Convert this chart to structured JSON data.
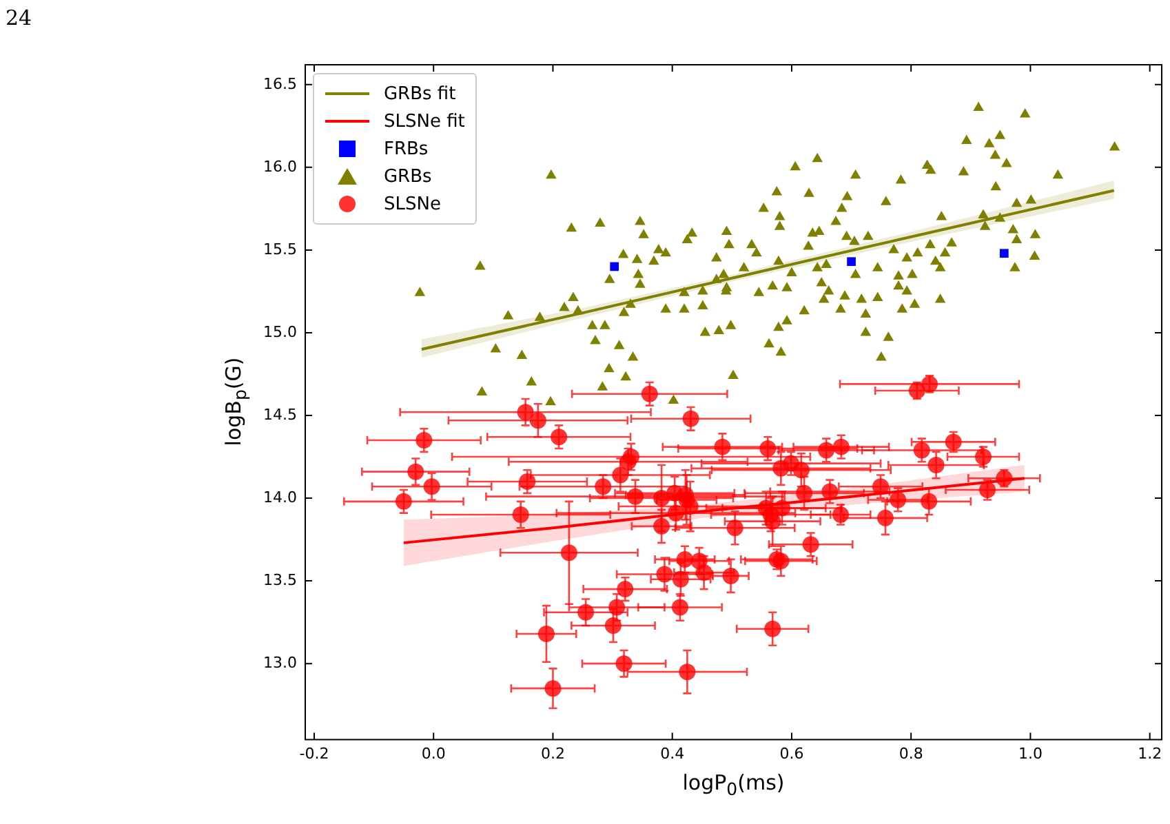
{
  "chart_data": {
    "type": "scatter",
    "xlabel": "logP$_{0}$(ms)",
    "ylabel": "logB$_{p}$(G)",
    "annotations": [
      "24"
    ],
    "xlim": [
      -0.215,
      1.22
    ],
    "ylim": [
      12.54,
      16.62
    ],
    "xticks": [
      -0.2,
      {
        "value": 0,
        "label": "0.0"
      },
      0.2,
      0.4,
      0.6,
      0.8,
      {
        "value": 1,
        "label": "1.0"
      },
      1.2
    ],
    "yticks": [
      {
        "value": 13,
        "label": "13.0"
      },
      13.5,
      {
        "value": 14,
        "label": "14.0"
      },
      14.5,
      {
        "value": 15,
        "label": "15.0"
      },
      15.5,
      {
        "value": 16,
        "label": "16.0"
      },
      16.5
    ],
    "legend": "top left",
    "series": [
      {
        "name": "GRBs fit",
        "type": "line",
        "marker": "none",
        "color": "#808000",
        "x": [
          -0.02,
          0.25,
          0.5,
          0.8,
          1.14
        ],
        "values": [
          14.9,
          15.12,
          15.33,
          15.58,
          15.86
        ],
        "lower": [
          14.85,
          15.09,
          15.31,
          15.55,
          15.81
        ],
        "upper": [
          14.96,
          15.15,
          15.35,
          15.61,
          15.92
        ]
      },
      {
        "name": "SLSNe fit",
        "type": "line",
        "marker": "none",
        "color": "#ff0000",
        "x": [
          -0.05,
          0.2,
          0.45,
          0.7,
          0.99
        ],
        "values": [
          13.73,
          13.82,
          13.92,
          14.01,
          14.12
        ],
        "lower": [
          13.59,
          13.74,
          13.88,
          13.96,
          14.04
        ],
        "upper": [
          13.87,
          13.9,
          13.96,
          14.06,
          14.2
        ]
      },
      {
        "name": "FRBs",
        "type": "scatter",
        "marker": "square",
        "color": "#0000ff",
        "x": [
          0.303,
          0.7,
          0.956
        ],
        "values": [
          15.4,
          15.43,
          15.48
        ]
      },
      {
        "name": "GRBs",
        "type": "scatter",
        "marker": "triangle",
        "color": "#808000",
        "x": [
          0.197,
          -0.023,
          0.078,
          0.231,
          0.279,
          0.346,
          0.352,
          0.318,
          0.295,
          0.341,
          0.343,
          0.346,
          0.377,
          0.389,
          0.369,
          0.425,
          0.433,
          0.491,
          0.495,
          0.474,
          0.474,
          0.486,
          0.49,
          0.451,
          0.42,
          0.389,
          0.42,
          0.451,
          0.455,
          0.478,
          0.498,
          0.33,
          0.319,
          0.234,
          0.242,
          0.219,
          0.178,
          0.125,
          0.104,
          0.148,
          0.266,
          0.287,
          0.271,
          0.311,
          0.334,
          0.294,
          0.322,
          0.283,
          0.164,
          0.081,
          0.196,
          0.402,
          0.502,
          0.913,
          0.991,
          0.893,
          0.931,
          0.949,
          0.941,
          0.96,
          1.141,
          1.046,
          0.942,
          0.827,
          0.833,
          0.888,
          0.783,
          0.707,
          0.643,
          0.606,
          0.575,
          0.629,
          0.693,
          0.758,
          0.684,
          0.553,
          0.58,
          0.58,
          0.674,
          0.635,
          0.646,
          0.692,
          0.728,
          0.705,
          0.628,
          0.533,
          0.541,
          0.851,
          0.921,
          0.949,
          0.977,
          1.001,
          0.924,
          0.971,
          1.008,
          0.977,
          1.007,
          0.974,
          0.771,
          0.793,
          0.811,
          0.832,
          0.868,
          0.857,
          0.841,
          0.849,
          0.578,
          0.6,
          0.643,
          0.658,
          0.707,
          0.744,
          0.779,
          0.802,
          0.52,
          0.491,
          0.545,
          0.568,
          0.592,
          0.65,
          0.662,
          0.654,
          0.689,
          0.744,
          0.779,
          0.793,
          0.849,
          0.806,
          0.785,
          0.717,
          0.724,
          0.682,
          0.621,
          0.592,
          0.578,
          0.724,
          0.762,
          0.562,
          0.582,
          0.75
        ],
        "values": [
          15.95,
          15.24,
          15.4,
          15.63,
          15.66,
          15.67,
          15.59,
          15.47,
          15.32,
          15.44,
          15.35,
          15.29,
          15.5,
          15.48,
          15.43,
          15.56,
          15.6,
          15.61,
          15.53,
          15.45,
          15.32,
          15.35,
          15.25,
          15.25,
          15.24,
          15.14,
          15.14,
          15.16,
          15.0,
          15.01,
          15.04,
          15.17,
          15.12,
          15.21,
          15.13,
          15.15,
          15.09,
          15.1,
          14.9,
          14.86,
          15.04,
          15.04,
          14.95,
          14.92,
          14.85,
          14.78,
          14.73,
          14.67,
          14.7,
          14.64,
          14.58,
          14.59,
          14.74,
          16.36,
          16.32,
          16.16,
          16.14,
          16.19,
          16.07,
          16.02,
          16.12,
          15.95,
          15.88,
          16.01,
          15.98,
          15.97,
          15.92,
          15.95,
          16.05,
          16.0,
          15.85,
          15.84,
          15.82,
          15.79,
          15.75,
          15.75,
          15.7,
          15.64,
          15.67,
          15.6,
          15.61,
          15.58,
          15.58,
          15.55,
          15.52,
          15.53,
          15.48,
          15.7,
          15.71,
          15.69,
          15.78,
          15.8,
          15.64,
          15.62,
          15.59,
          15.56,
          15.46,
          15.39,
          15.5,
          15.45,
          15.48,
          15.53,
          15.54,
          15.48,
          15.43,
          15.39,
          15.43,
          15.36,
          15.39,
          15.41,
          15.35,
          15.39,
          15.34,
          15.35,
          15.39,
          15.27,
          15.24,
          15.28,
          15.27,
          15.3,
          15.25,
          15.2,
          15.22,
          15.21,
          15.28,
          15.25,
          15.2,
          15.17,
          15.14,
          15.2,
          15.11,
          15.14,
          15.13,
          15.07,
          15.03,
          15.0,
          14.97,
          14.93,
          14.88,
          14.85
        ]
      },
      {
        "name": "SLSNe",
        "type": "scatter",
        "marker": "circle",
        "color": "#ff0000",
        "x": [
          -0.016,
          -0.03,
          -0.003,
          -0.05,
          0.154,
          0.175,
          0.21,
          0.157,
          0.146,
          0.227,
          0.189,
          0.2,
          0.319,
          0.425,
          0.255,
          0.301,
          0.307,
          0.321,
          0.413,
          0.387,
          0.414,
          0.421,
          0.445,
          0.453,
          0.498,
          0.284,
          0.313,
          0.331,
          0.326,
          0.338,
          0.382,
          0.382,
          0.404,
          0.422,
          0.424,
          0.43,
          0.406,
          0.505,
          0.484,
          0.431,
          0.362,
          0.831,
          0.81,
          0.56,
          0.658,
          0.683,
          0.818,
          0.871,
          0.921,
          0.842,
          0.599,
          0.582,
          0.616,
          0.956,
          0.928,
          0.749,
          0.664,
          0.621,
          0.778,
          0.83,
          0.682,
          0.757,
          0.584,
          0.565,
          0.557,
          0.568,
          0.632,
          0.575,
          0.582,
          0.568
        ],
        "values": [
          14.35,
          14.16,
          14.07,
          13.98,
          14.52,
          14.47,
          14.37,
          14.1,
          13.9,
          13.67,
          13.18,
          12.85,
          13.0,
          12.95,
          13.31,
          13.23,
          13.34,
          13.45,
          13.34,
          13.54,
          13.51,
          13.63,
          13.62,
          13.55,
          13.53,
          14.07,
          14.14,
          14.25,
          14.22,
          14.01,
          14.0,
          13.83,
          14.03,
          14.02,
          13.99,
          13.95,
          13.91,
          13.82,
          14.31,
          14.48,
          14.63,
          14.69,
          14.65,
          14.3,
          14.29,
          14.31,
          14.29,
          14.34,
          14.25,
          14.2,
          14.21,
          14.18,
          14.17,
          14.12,
          14.05,
          14.07,
          14.04,
          14.03,
          13.99,
          13.98,
          13.9,
          13.88,
          13.94,
          13.9,
          13.94,
          13.86,
          13.72,
          13.63,
          13.62,
          13.21
        ],
        "xerrors": [
          0.095,
          0.09,
          0.1,
          0.1,
          0.21,
          0.15,
          0.12,
          0.1,
          0.15,
          0.115,
          0.05,
          0.07,
          0.07,
          0.1,
          0.07,
          0.07,
          0.08,
          0.07,
          0.07,
          0.08,
          0.05,
          0.05,
          0.05,
          0.05,
          0.03,
          0.14,
          0.15,
          0.3,
          0.2,
          0.25,
          0.12,
          0.05,
          0.1,
          0.1,
          0.05,
          0.12,
          0.2,
          0.1,
          0.1,
          0.1,
          0.13,
          0.15,
          0.07,
          0.15,
          0.08,
          0.08,
          0.1,
          0.07,
          0.06,
          0.08,
          0.15,
          0.15,
          0.15,
          0.06,
          0.07,
          0.07,
          0.1,
          0.1,
          0.05,
          0.07,
          0.05,
          0.07,
          0.1,
          0.1,
          0.1,
          0.08,
          0.07,
          0.06,
          0.06,
          0.06
        ],
        "errors": [
          0.07,
          0.08,
          0.08,
          0.07,
          0.08,
          0.1,
          0.07,
          0.07,
          0.08,
          0.31,
          0.17,
          0.12,
          0.08,
          0.13,
          0.08,
          0.1,
          0.08,
          0.07,
          0.08,
          0.1,
          0.1,
          0.08,
          0.08,
          0.1,
          0.1,
          0.07,
          0.1,
          0.08,
          0.08,
          0.1,
          0.2,
          0.1,
          0.1,
          0.15,
          0.15,
          0.15,
          0.1,
          0.1,
          0.08,
          0.07,
          0.07,
          0.05,
          0.05,
          0.07,
          0.07,
          0.07,
          0.07,
          0.06,
          0.06,
          0.08,
          0.07,
          0.1,
          0.1,
          0.05,
          0.06,
          0.07,
          0.07,
          0.1,
          0.07,
          0.08,
          0.06,
          0.1,
          0.1,
          0.1,
          0.1,
          0.15,
          0.07,
          0.06,
          0.09,
          0.1
        ]
      }
    ]
  }
}
